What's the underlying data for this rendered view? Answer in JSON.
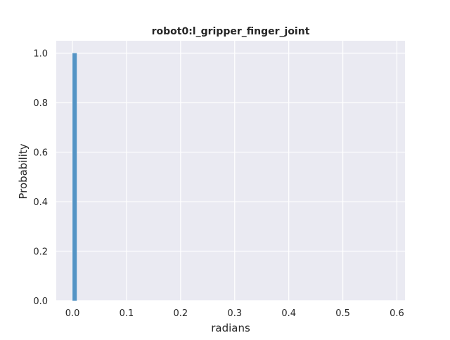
{
  "chart_data": {
    "type": "bar",
    "title": "robot0:l_gripper_finger_joint",
    "xlabel": "radians",
    "ylabel": "Probability",
    "xlim": [
      -0.03,
      0.615
    ],
    "ylim": [
      0,
      1.05
    ],
    "xticks": [
      0.0,
      0.1,
      0.2,
      0.3,
      0.4,
      0.5,
      0.6
    ],
    "xtick_labels": [
      "0.0",
      "0.1",
      "0.2",
      "0.3",
      "0.4",
      "0.5",
      "0.6"
    ],
    "yticks": [
      0.0,
      0.2,
      0.4,
      0.6,
      0.8,
      1.0
    ],
    "ytick_labels": [
      "0.0",
      "0.2",
      "0.4",
      "0.6",
      "0.8",
      "1.0"
    ],
    "grid": true,
    "bars": [
      {
        "x_start": 0.0,
        "x_end": 0.008,
        "value": 1.0
      }
    ],
    "colors": {
      "plot_background": "#eaeaf2",
      "grid": "#ffffff",
      "bar": "#4c8fc2"
    }
  }
}
